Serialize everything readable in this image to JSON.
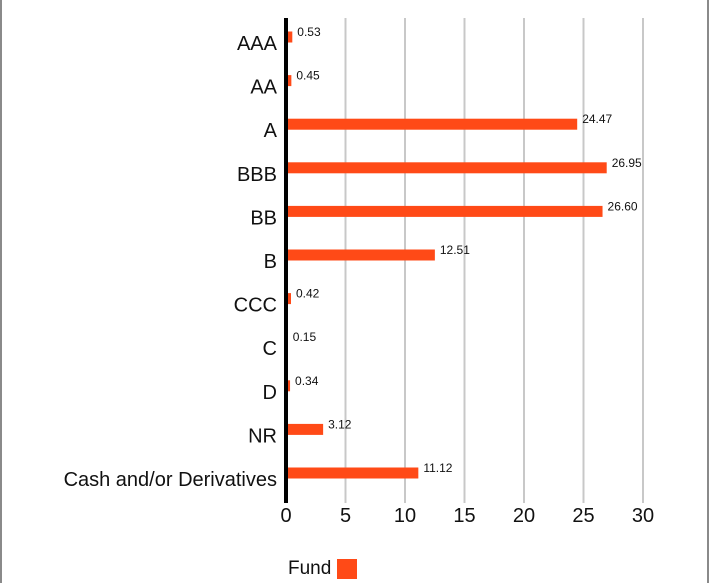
{
  "chart_data": {
    "type": "bar",
    "orientation": "horizontal",
    "categories": [
      "AAA",
      "AA",
      "A",
      "BBB",
      "BB",
      "B",
      "CCC",
      "C",
      "D",
      "NR",
      "Cash and/or Derivatives"
    ],
    "series": [
      {
        "name": "Fund",
        "values": [
          0.53,
          0.45,
          24.47,
          26.95,
          26.6,
          12.51,
          0.42,
          0.15,
          0.34,
          3.12,
          11.12
        ],
        "labels": [
          "0.53",
          "0.45",
          "24.47",
          "26.95",
          "26.60",
          "12.51",
          "0.42",
          "0.15",
          "0.34",
          "3.12",
          "11.12"
        ],
        "color": "#ff4a17"
      }
    ],
    "xticks": [
      "0",
      "5",
      "10",
      "15",
      "20",
      "25",
      "30"
    ],
    "xlim": [
      0,
      30
    ],
    "grid": true,
    "gridColor": "#c8c8c8",
    "axisColor": "#000000",
    "legend_position": "bottom"
  },
  "legend": {
    "label": "Fund"
  }
}
